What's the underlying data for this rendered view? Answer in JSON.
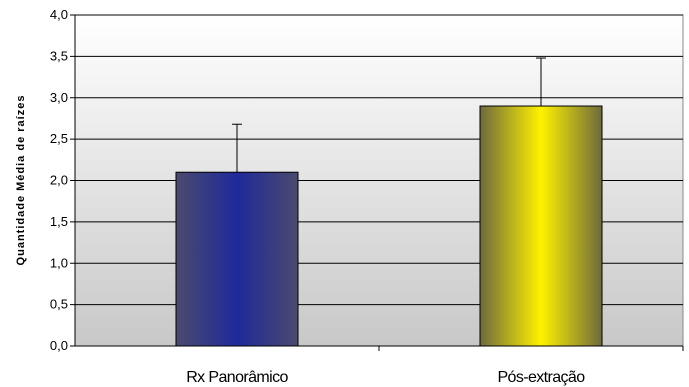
{
  "chart_data": {
    "type": "bar",
    "title": "",
    "xlabel": "",
    "ylabel": "Quantidade Média de raízes",
    "categories": [
      "Rx Panorâmico",
      "Pós-extração"
    ],
    "values": [
      2.1,
      2.9
    ],
    "error": [
      0.58,
      0.58
    ],
    "ylim": [
      0,
      4
    ],
    "yticks": [
      "0,0",
      "0,5",
      "1,0",
      "1,5",
      "2,0",
      "2,5",
      "3,0",
      "3,5",
      "4,0"
    ],
    "bar_colors": [
      "#1f2a8a",
      "#f2e600"
    ],
    "grid": true,
    "legend": "none"
  }
}
